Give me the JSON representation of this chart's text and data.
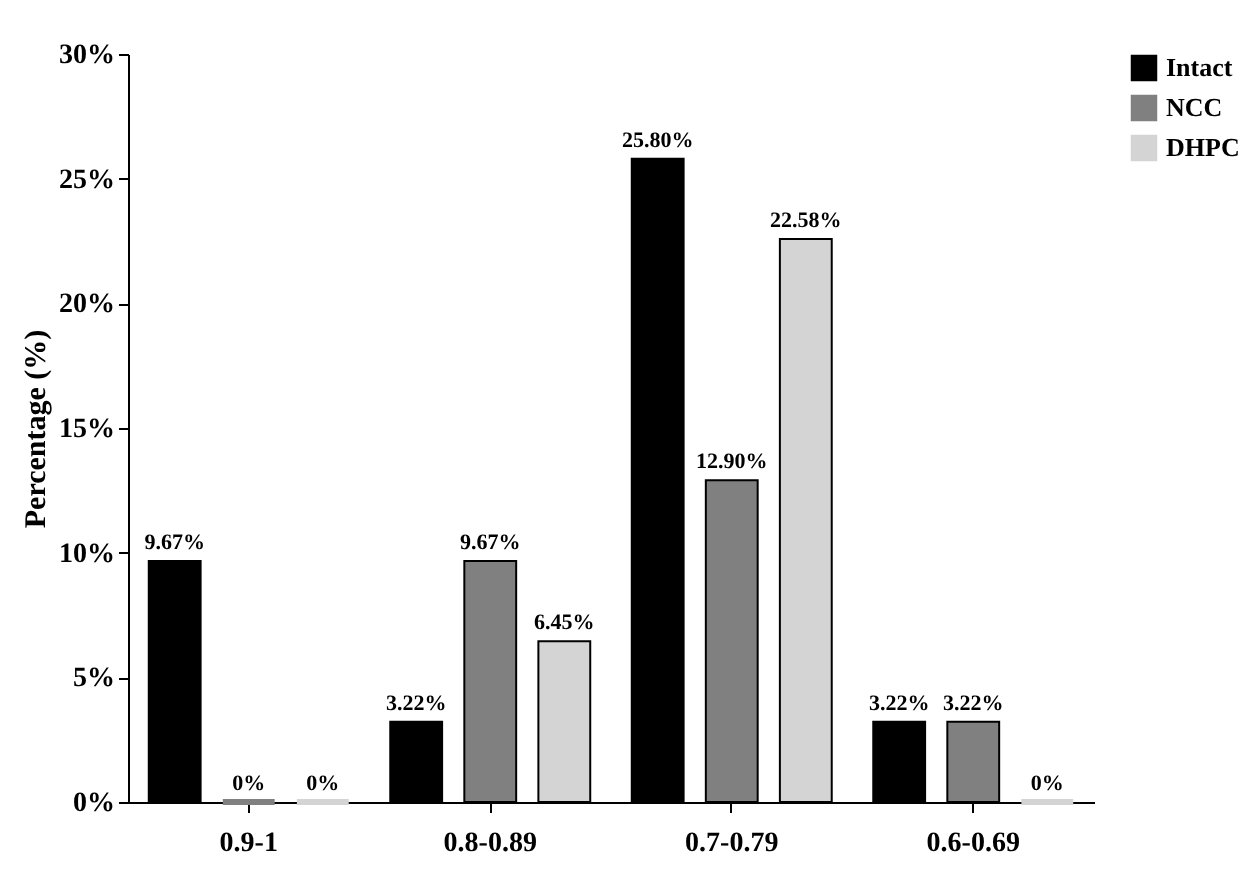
{
  "chart_data": {
    "type": "bar",
    "ylabel": "Percentage (%)",
    "categories": [
      "0.9-1",
      "0.8-0.89",
      "0.7-0.79",
      "0.6-0.69"
    ],
    "series": [
      {
        "name": "Intact",
        "color": "#000000",
        "values": [
          9.67,
          3.22,
          25.8,
          3.22
        ],
        "value_labels": [
          "9.67%",
          "3.22%",
          "25.80%",
          "3.22%"
        ]
      },
      {
        "name": "NCC",
        "color": "#808080",
        "values": [
          0,
          9.67,
          12.9,
          3.22
        ],
        "value_labels": [
          "0%",
          "9.67%",
          "12.90%",
          "3.22%"
        ]
      },
      {
        "name": "DHPC",
        "color": "#d4d4d4",
        "values": [
          0,
          6.45,
          22.58,
          0
        ],
        "value_labels": [
          "0%",
          "6.45%",
          "22.58%",
          "0%"
        ]
      }
    ],
    "ylim": [
      0,
      30
    ],
    "yticks": [
      {
        "value": 0,
        "label": "0%"
      },
      {
        "value": 5,
        "label": "5%"
      },
      {
        "value": 10,
        "label": "10%"
      },
      {
        "value": 15,
        "label": "15%"
      },
      {
        "value": 20,
        "label": "20%"
      },
      {
        "value": 25,
        "label": "25%"
      },
      {
        "value": 30,
        "label": "30%"
      }
    ],
    "legend": "right"
  }
}
